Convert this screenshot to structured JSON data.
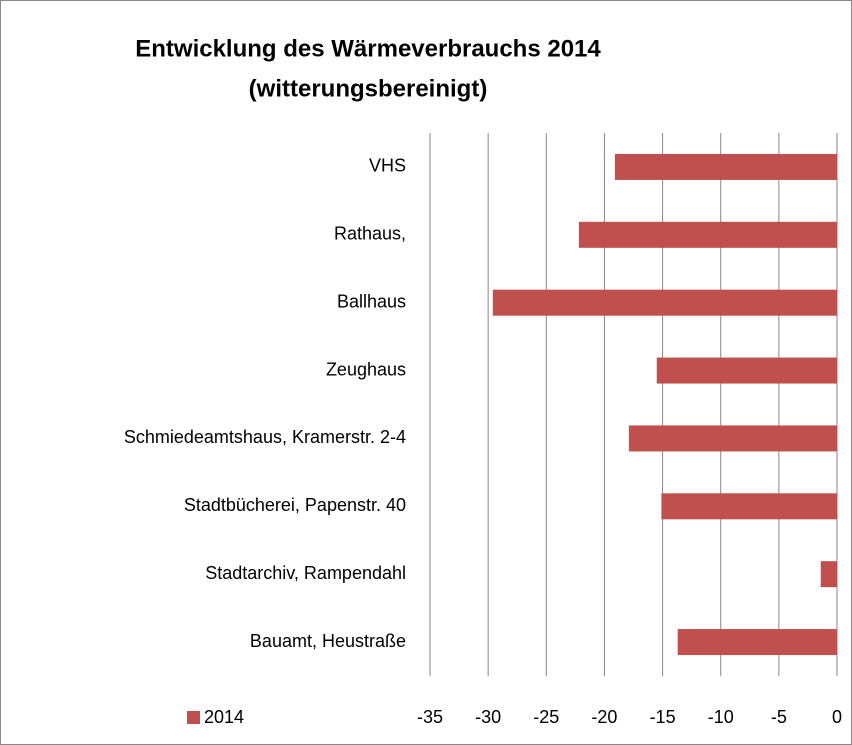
{
  "chart_data": {
    "type": "barh",
    "title": [
      "Entwicklung des Wärmeverbrauchs 2014",
      "(witterungsbereinigt)"
    ],
    "categories": [
      "VHS",
      "Rathaus,",
      "Ballhaus",
      "Zeughaus",
      "Schmiedeamtshaus, Kramerstr. 2-4",
      "Stadtbücherei, Papenstr. 40",
      "Stadtarchiv, Rampendahl",
      "Bauamt, Heustraße"
    ],
    "series": [
      {
        "name": "2014",
        "color": "#c0504d",
        "values": [
          -19.1,
          -22.2,
          -29.6,
          -15.5,
          -17.9,
          -15.1,
          -1.4,
          -13.7
        ]
      }
    ],
    "xlim": [
      -35,
      0
    ],
    "xticks": [
      -35,
      -30,
      -25,
      -20,
      -15,
      -10,
      -5,
      0
    ],
    "grid": true,
    "legend": "bottom-left"
  }
}
